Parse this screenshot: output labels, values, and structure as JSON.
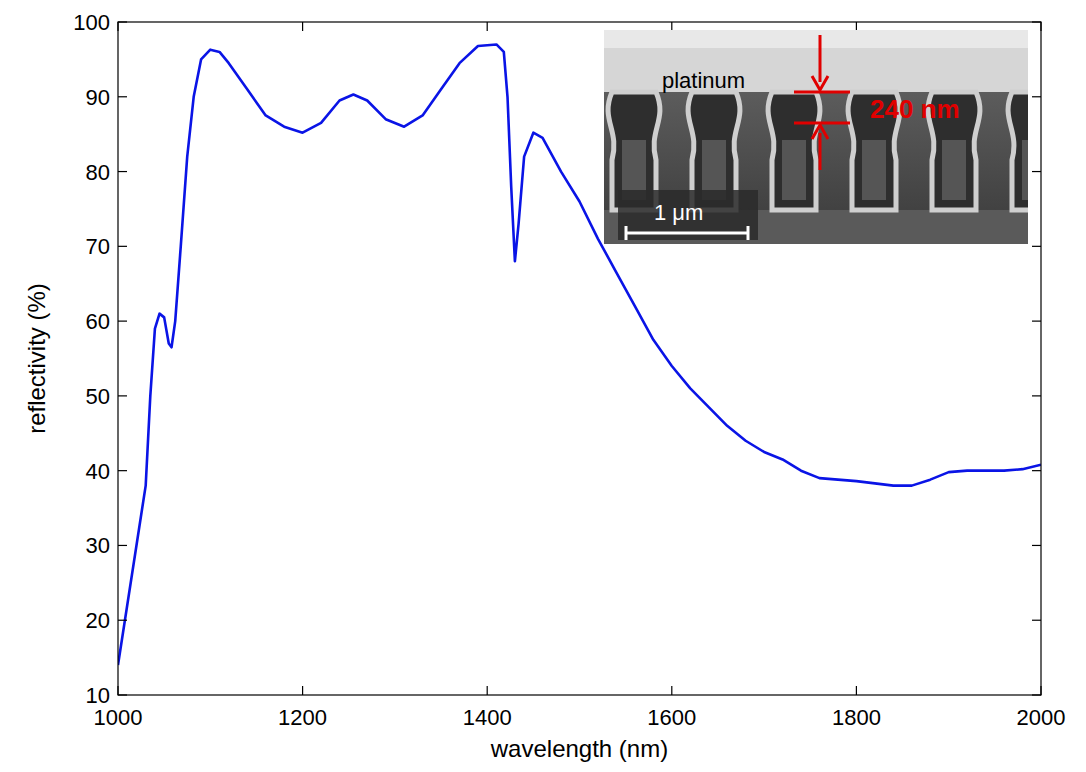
{
  "chart_data": {
    "type": "line",
    "x_label": "wavelength (nm)",
    "y_label": "reflectivity (%)",
    "color": "#0a14e6",
    "x": [
      1000,
      1010,
      1020,
      1030,
      1035,
      1040,
      1045,
      1050,
      1055,
      1058,
      1062,
      1068,
      1075,
      1082,
      1090,
      1100,
      1110,
      1120,
      1140,
      1160,
      1180,
      1200,
      1220,
      1240,
      1255,
      1270,
      1290,
      1310,
      1330,
      1350,
      1370,
      1390,
      1410,
      1418,
      1422,
      1426,
      1430,
      1434,
      1440,
      1450,
      1460,
      1480,
      1500,
      1520,
      1540,
      1560,
      1580,
      1600,
      1620,
      1640,
      1660,
      1680,
      1700,
      1720,
      1740,
      1760,
      1780,
      1800,
      1820,
      1840,
      1860,
      1880,
      1900,
      1920,
      1940,
      1960,
      1980,
      2000
    ],
    "values": [
      14,
      22,
      30,
      38,
      50,
      59,
      61,
      60.5,
      57,
      56.5,
      60,
      70,
      82,
      90,
      95,
      96.3,
      96,
      94.5,
      91,
      87.5,
      86,
      85.2,
      86.5,
      89.5,
      90.3,
      89.5,
      87,
      86,
      87.5,
      91,
      94.5,
      96.8,
      97,
      96,
      90,
      78,
      68,
      73,
      82,
      85.2,
      84.5,
      80,
      76,
      71,
      66.5,
      62,
      57.5,
      54,
      51,
      48.5,
      46,
      44,
      42.5,
      41.5,
      40,
      39,
      38.8,
      38.6,
      38.3,
      38,
      38,
      38.8,
      39.8,
      40,
      40,
      40,
      40.2,
      40.8
    ],
    "xlim": [
      1000,
      2000
    ],
    "ylim": [
      10,
      100
    ],
    "xticks": [
      1000,
      1200,
      1400,
      1600,
      1800,
      2000
    ],
    "yticks": [
      10,
      20,
      30,
      40,
      50,
      60,
      70,
      80,
      90,
      100
    ],
    "grid": false,
    "annotations": [
      {
        "text": "platinum"
      },
      {
        "text": "240 nm"
      },
      {
        "text": "1 μm"
      }
    ]
  }
}
